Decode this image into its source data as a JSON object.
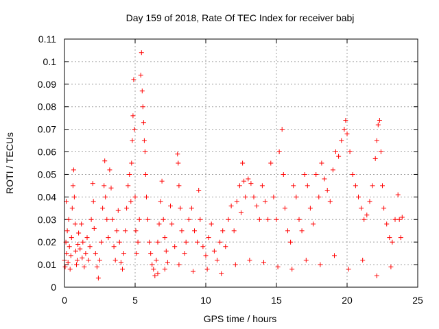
{
  "chart_data": {
    "type": "scatter",
    "title": "Day 159 of 2018, Rate Of TEC Index for receiver babj",
    "xlabel": "GPS time / hours",
    "ylabel": "ROTI / TECUs",
    "xlim": [
      0,
      25
    ],
    "ylim": [
      0,
      0.11
    ],
    "xticks": [
      0,
      5,
      10,
      15,
      20,
      25
    ],
    "xtick_labels": [
      "0",
      "5",
      "10",
      "15",
      "20",
      "25"
    ],
    "yticks": [
      0,
      0.01,
      0.02,
      0.03,
      0.04,
      0.05,
      0.06,
      0.07,
      0.08,
      0.09,
      0.1,
      0.11
    ],
    "ytick_labels": [
      "0",
      "0.01",
      "0.02",
      "0.03",
      "0.04",
      "0.05",
      "0.06",
      "0.07",
      "0.08",
      "0.09",
      "0.1",
      "0.11"
    ],
    "grid": true,
    "marker": "+",
    "color": "#ff0000",
    "series": [
      {
        "name": "ROTI",
        "points": [
          [
            0.0,
            0.012
          ],
          [
            0.05,
            0.009
          ],
          [
            0.1,
            0.02
          ],
          [
            0.12,
            0.038
          ],
          [
            0.15,
            0.015
          ],
          [
            0.2,
            0.025
          ],
          [
            0.25,
            0.011
          ],
          [
            0.3,
            0.03
          ],
          [
            0.35,
            0.018
          ],
          [
            0.4,
            0.008
          ],
          [
            0.45,
            0.014
          ],
          [
            0.5,
            0.022
          ],
          [
            0.55,
            0.035
          ],
          [
            0.6,
            0.045
          ],
          [
            0.65,
            0.052
          ],
          [
            0.7,
            0.04
          ],
          [
            0.75,
            0.028
          ],
          [
            0.8,
            0.016
          ],
          [
            0.85,
            0.01
          ],
          [
            0.9,
            0.012
          ],
          [
            0.95,
            0.019
          ],
          [
            1.0,
            0.024
          ],
          [
            1.1,
            0.017
          ],
          [
            1.2,
            0.028
          ],
          [
            1.25,
            0.013
          ],
          [
            1.3,
            0.02
          ],
          [
            1.4,
            0.009
          ],
          [
            1.5,
            0.015
          ],
          [
            1.6,
            0.022
          ],
          [
            1.7,
            0.012
          ],
          [
            1.8,
            0.018
          ],
          [
            1.9,
            0.03
          ],
          [
            2.0,
            0.046
          ],
          [
            2.05,
            0.038
          ],
          [
            2.1,
            0.026
          ],
          [
            2.2,
            0.015
          ],
          [
            2.3,
            0.009
          ],
          [
            2.4,
            0.004
          ],
          [
            2.5,
            0.012
          ],
          [
            2.6,
            0.02
          ],
          [
            2.7,
            0.035
          ],
          [
            2.8,
            0.045
          ],
          [
            2.85,
            0.056
          ],
          [
            2.9,
            0.04
          ],
          [
            3.0,
            0.03
          ],
          [
            3.1,
            0.022
          ],
          [
            3.2,
            0.052
          ],
          [
            3.3,
            0.044
          ],
          [
            3.4,
            0.03
          ],
          [
            3.5,
            0.018
          ],
          [
            3.6,
            0.012
          ],
          [
            3.7,
            0.025
          ],
          [
            3.8,
            0.034
          ],
          [
            3.9,
            0.02
          ],
          [
            4.0,
            0.011
          ],
          [
            4.1,
            0.008
          ],
          [
            4.2,
            0.015
          ],
          [
            4.3,
            0.025
          ],
          [
            4.4,
            0.035
          ],
          [
            4.5,
            0.045
          ],
          [
            4.6,
            0.05
          ],
          [
            4.7,
            0.038
          ],
          [
            4.75,
            0.055
          ],
          [
            4.8,
            0.065
          ],
          [
            4.85,
            0.076
          ],
          [
            4.9,
            0.092
          ],
          [
            4.95,
            0.07
          ],
          [
            5.0,
            0.04
          ],
          [
            5.05,
            0.025
          ],
          [
            5.1,
            0.015
          ],
          [
            5.2,
            0.02
          ],
          [
            5.3,
            0.03
          ],
          [
            5.4,
            0.094
          ],
          [
            5.45,
            0.104
          ],
          [
            5.5,
            0.087
          ],
          [
            5.55,
            0.08
          ],
          [
            5.6,
            0.073
          ],
          [
            5.65,
            0.065
          ],
          [
            5.7,
            0.06
          ],
          [
            5.75,
            0.05
          ],
          [
            5.8,
            0.04
          ],
          [
            5.9,
            0.03
          ],
          [
            6.0,
            0.02
          ],
          [
            6.1,
            0.015
          ],
          [
            6.2,
            0.01
          ],
          [
            6.3,
            0.008
          ],
          [
            6.4,
            0.005
          ],
          [
            6.5,
            0.012
          ],
          [
            6.6,
            0.02
          ],
          [
            6.7,
            0.028
          ],
          [
            6.8,
            0.038
          ],
          [
            6.9,
            0.047
          ],
          [
            7.0,
            0.03
          ],
          [
            7.1,
            0.022
          ],
          [
            7.2,
            0.016
          ],
          [
            7.3,
            0.011
          ],
          [
            7.5,
            0.036
          ],
          [
            7.6,
            0.028
          ],
          [
            7.8,
            0.018
          ],
          [
            8.0,
            0.059
          ],
          [
            8.05,
            0.055
          ],
          [
            8.1,
            0.045
          ],
          [
            8.2,
            0.035
          ],
          [
            8.3,
            0.025
          ],
          [
            8.5,
            0.015
          ],
          [
            8.6,
            0.02
          ],
          [
            8.8,
            0.03
          ],
          [
            9.0,
            0.035
          ],
          [
            9.2,
            0.025
          ],
          [
            9.4,
            0.02
          ],
          [
            9.5,
            0.043
          ],
          [
            9.6,
            0.03
          ],
          [
            9.8,
            0.018
          ],
          [
            10.0,
            0.014
          ],
          [
            10.2,
            0.022
          ],
          [
            10.4,
            0.028
          ],
          [
            10.6,
            0.016
          ],
          [
            10.8,
            0.012
          ],
          [
            11.0,
            0.02
          ],
          [
            11.2,
            0.025
          ],
          [
            11.4,
            0.018
          ],
          [
            11.6,
            0.03
          ],
          [
            11.8,
            0.036
          ],
          [
            12.0,
            0.025
          ],
          [
            12.2,
            0.038
          ],
          [
            12.4,
            0.045
          ],
          [
            12.5,
            0.033
          ],
          [
            12.6,
            0.055
          ],
          [
            12.7,
            0.047
          ],
          [
            12.8,
            0.04
          ],
          [
            13.0,
            0.048
          ],
          [
            13.2,
            0.046
          ],
          [
            13.4,
            0.04
          ],
          [
            13.6,
            0.036
          ],
          [
            13.8,
            0.03
          ],
          [
            14.0,
            0.045
          ],
          [
            14.2,
            0.038
          ],
          [
            14.4,
            0.03
          ],
          [
            14.6,
            0.055
          ],
          [
            14.8,
            0.04
          ],
          [
            15.0,
            0.03
          ],
          [
            15.2,
            0.06
          ],
          [
            15.4,
            0.07
          ],
          [
            15.5,
            0.05
          ],
          [
            15.6,
            0.035
          ],
          [
            15.8,
            0.025
          ],
          [
            16.0,
            0.02
          ],
          [
            16.2,
            0.045
          ],
          [
            16.4,
            0.04
          ],
          [
            16.6,
            0.03
          ],
          [
            16.8,
            0.025
          ],
          [
            17.0,
            0.05
          ],
          [
            17.2,
            0.045
          ],
          [
            17.4,
            0.035
          ],
          [
            17.6,
            0.028
          ],
          [
            17.8,
            0.05
          ],
          [
            18.0,
            0.04
          ],
          [
            18.2,
            0.055
          ],
          [
            18.4,
            0.048
          ],
          [
            18.6,
            0.043
          ],
          [
            18.8,
            0.038
          ],
          [
            19.0,
            0.052
          ],
          [
            19.2,
            0.06
          ],
          [
            19.4,
            0.058
          ],
          [
            19.6,
            0.065
          ],
          [
            19.8,
            0.07
          ],
          [
            19.9,
            0.074
          ],
          [
            20.0,
            0.068
          ],
          [
            20.2,
            0.06
          ],
          [
            20.4,
            0.05
          ],
          [
            20.6,
            0.045
          ],
          [
            20.8,
            0.04
          ],
          [
            21.0,
            0.035
          ],
          [
            21.2,
            0.03
          ],
          [
            21.4,
            0.032
          ],
          [
            21.6,
            0.038
          ],
          [
            21.8,
            0.045
          ],
          [
            22.0,
            0.057
          ],
          [
            22.1,
            0.065
          ],
          [
            22.2,
            0.072
          ],
          [
            22.3,
            0.074
          ],
          [
            22.4,
            0.06
          ],
          [
            22.5,
            0.045
          ],
          [
            22.6,
            0.035
          ],
          [
            22.8,
            0.028
          ],
          [
            23.0,
            0.022
          ],
          [
            23.2,
            0.02
          ],
          [
            23.4,
            0.03
          ],
          [
            23.6,
            0.041
          ],
          [
            23.7,
            0.03
          ],
          [
            23.8,
            0.022
          ],
          [
            23.9,
            0.031
          ],
          [
            13.1,
            0.012
          ],
          [
            14.1,
            0.011
          ],
          [
            15.1,
            0.009
          ],
          [
            16.1,
            0.008
          ],
          [
            17.1,
            0.012
          ],
          [
            18.1,
            0.01
          ],
          [
            19.1,
            0.014
          ],
          [
            20.1,
            0.008
          ],
          [
            21.1,
            0.012
          ],
          [
            22.1,
            0.005
          ],
          [
            23.1,
            0.009
          ],
          [
            12.1,
            0.01
          ],
          [
            11.1,
            0.006
          ],
          [
            10.1,
            0.008
          ],
          [
            9.1,
            0.007
          ],
          [
            8.1,
            0.01
          ],
          [
            7.1,
            0.008
          ],
          [
            6.6,
            0.006
          ]
        ]
      }
    ]
  }
}
